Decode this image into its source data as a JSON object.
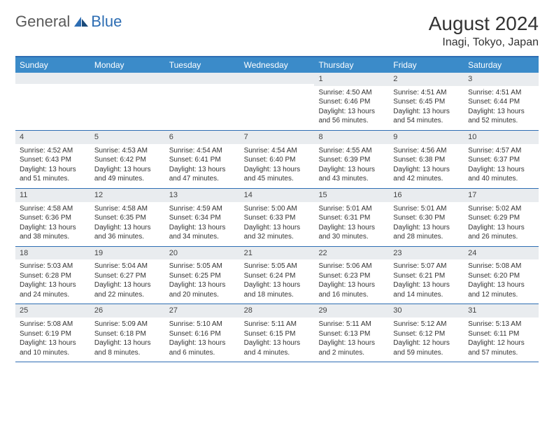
{
  "logo": {
    "text1": "General",
    "text2": "Blue"
  },
  "title": "August 2024",
  "location": "Inagi, Tokyo, Japan",
  "colors": {
    "header_bg": "#3b8bc9",
    "header_text": "#ffffff",
    "border": "#2d6db3",
    "daynum_bg": "#e9ecef",
    "text": "#333333"
  },
  "day_names": [
    "Sunday",
    "Monday",
    "Tuesday",
    "Wednesday",
    "Thursday",
    "Friday",
    "Saturday"
  ],
  "weeks": [
    [
      {
        "day": "",
        "sunrise": "",
        "sunset": "",
        "daylight": ""
      },
      {
        "day": "",
        "sunrise": "",
        "sunset": "",
        "daylight": ""
      },
      {
        "day": "",
        "sunrise": "",
        "sunset": "",
        "daylight": ""
      },
      {
        "day": "",
        "sunrise": "",
        "sunset": "",
        "daylight": ""
      },
      {
        "day": "1",
        "sunrise": "Sunrise: 4:50 AM",
        "sunset": "Sunset: 6:46 PM",
        "daylight": "Daylight: 13 hours and 56 minutes."
      },
      {
        "day": "2",
        "sunrise": "Sunrise: 4:51 AM",
        "sunset": "Sunset: 6:45 PM",
        "daylight": "Daylight: 13 hours and 54 minutes."
      },
      {
        "day": "3",
        "sunrise": "Sunrise: 4:51 AM",
        "sunset": "Sunset: 6:44 PM",
        "daylight": "Daylight: 13 hours and 52 minutes."
      }
    ],
    [
      {
        "day": "4",
        "sunrise": "Sunrise: 4:52 AM",
        "sunset": "Sunset: 6:43 PM",
        "daylight": "Daylight: 13 hours and 51 minutes."
      },
      {
        "day": "5",
        "sunrise": "Sunrise: 4:53 AM",
        "sunset": "Sunset: 6:42 PM",
        "daylight": "Daylight: 13 hours and 49 minutes."
      },
      {
        "day": "6",
        "sunrise": "Sunrise: 4:54 AM",
        "sunset": "Sunset: 6:41 PM",
        "daylight": "Daylight: 13 hours and 47 minutes."
      },
      {
        "day": "7",
        "sunrise": "Sunrise: 4:54 AM",
        "sunset": "Sunset: 6:40 PM",
        "daylight": "Daylight: 13 hours and 45 minutes."
      },
      {
        "day": "8",
        "sunrise": "Sunrise: 4:55 AM",
        "sunset": "Sunset: 6:39 PM",
        "daylight": "Daylight: 13 hours and 43 minutes."
      },
      {
        "day": "9",
        "sunrise": "Sunrise: 4:56 AM",
        "sunset": "Sunset: 6:38 PM",
        "daylight": "Daylight: 13 hours and 42 minutes."
      },
      {
        "day": "10",
        "sunrise": "Sunrise: 4:57 AM",
        "sunset": "Sunset: 6:37 PM",
        "daylight": "Daylight: 13 hours and 40 minutes."
      }
    ],
    [
      {
        "day": "11",
        "sunrise": "Sunrise: 4:58 AM",
        "sunset": "Sunset: 6:36 PM",
        "daylight": "Daylight: 13 hours and 38 minutes."
      },
      {
        "day": "12",
        "sunrise": "Sunrise: 4:58 AM",
        "sunset": "Sunset: 6:35 PM",
        "daylight": "Daylight: 13 hours and 36 minutes."
      },
      {
        "day": "13",
        "sunrise": "Sunrise: 4:59 AM",
        "sunset": "Sunset: 6:34 PM",
        "daylight": "Daylight: 13 hours and 34 minutes."
      },
      {
        "day": "14",
        "sunrise": "Sunrise: 5:00 AM",
        "sunset": "Sunset: 6:33 PM",
        "daylight": "Daylight: 13 hours and 32 minutes."
      },
      {
        "day": "15",
        "sunrise": "Sunrise: 5:01 AM",
        "sunset": "Sunset: 6:31 PM",
        "daylight": "Daylight: 13 hours and 30 minutes."
      },
      {
        "day": "16",
        "sunrise": "Sunrise: 5:01 AM",
        "sunset": "Sunset: 6:30 PM",
        "daylight": "Daylight: 13 hours and 28 minutes."
      },
      {
        "day": "17",
        "sunrise": "Sunrise: 5:02 AM",
        "sunset": "Sunset: 6:29 PM",
        "daylight": "Daylight: 13 hours and 26 minutes."
      }
    ],
    [
      {
        "day": "18",
        "sunrise": "Sunrise: 5:03 AM",
        "sunset": "Sunset: 6:28 PM",
        "daylight": "Daylight: 13 hours and 24 minutes."
      },
      {
        "day": "19",
        "sunrise": "Sunrise: 5:04 AM",
        "sunset": "Sunset: 6:27 PM",
        "daylight": "Daylight: 13 hours and 22 minutes."
      },
      {
        "day": "20",
        "sunrise": "Sunrise: 5:05 AM",
        "sunset": "Sunset: 6:25 PM",
        "daylight": "Daylight: 13 hours and 20 minutes."
      },
      {
        "day": "21",
        "sunrise": "Sunrise: 5:05 AM",
        "sunset": "Sunset: 6:24 PM",
        "daylight": "Daylight: 13 hours and 18 minutes."
      },
      {
        "day": "22",
        "sunrise": "Sunrise: 5:06 AM",
        "sunset": "Sunset: 6:23 PM",
        "daylight": "Daylight: 13 hours and 16 minutes."
      },
      {
        "day": "23",
        "sunrise": "Sunrise: 5:07 AM",
        "sunset": "Sunset: 6:21 PM",
        "daylight": "Daylight: 13 hours and 14 minutes."
      },
      {
        "day": "24",
        "sunrise": "Sunrise: 5:08 AM",
        "sunset": "Sunset: 6:20 PM",
        "daylight": "Daylight: 13 hours and 12 minutes."
      }
    ],
    [
      {
        "day": "25",
        "sunrise": "Sunrise: 5:08 AM",
        "sunset": "Sunset: 6:19 PM",
        "daylight": "Daylight: 13 hours and 10 minutes."
      },
      {
        "day": "26",
        "sunrise": "Sunrise: 5:09 AM",
        "sunset": "Sunset: 6:18 PM",
        "daylight": "Daylight: 13 hours and 8 minutes."
      },
      {
        "day": "27",
        "sunrise": "Sunrise: 5:10 AM",
        "sunset": "Sunset: 6:16 PM",
        "daylight": "Daylight: 13 hours and 6 minutes."
      },
      {
        "day": "28",
        "sunrise": "Sunrise: 5:11 AM",
        "sunset": "Sunset: 6:15 PM",
        "daylight": "Daylight: 13 hours and 4 minutes."
      },
      {
        "day": "29",
        "sunrise": "Sunrise: 5:11 AM",
        "sunset": "Sunset: 6:13 PM",
        "daylight": "Daylight: 13 hours and 2 minutes."
      },
      {
        "day": "30",
        "sunrise": "Sunrise: 5:12 AM",
        "sunset": "Sunset: 6:12 PM",
        "daylight": "Daylight: 12 hours and 59 minutes."
      },
      {
        "day": "31",
        "sunrise": "Sunrise: 5:13 AM",
        "sunset": "Sunset: 6:11 PM",
        "daylight": "Daylight: 12 hours and 57 minutes."
      }
    ]
  ]
}
